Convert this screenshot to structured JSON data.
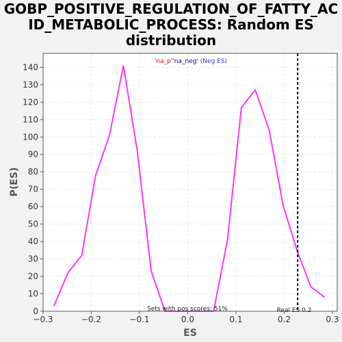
{
  "header": {
    "title_lines": [
      "GOBP_POSITIVE_REGULATION_OF_FATTY_AC",
      "ID_METABOLIC_PROCESS: Random ES",
      "distribution"
    ]
  },
  "chart_data": {
    "type": "line",
    "title": "GOBP_POSITIVE_REGULATION_OF_FATTY_ACID_METABOLIC_PROCESS: Random ES distribution",
    "xlabel": "ES",
    "ylabel": "P(ES)",
    "xlim": [
      -0.3,
      0.31
    ],
    "ylim": [
      0,
      148
    ],
    "xticks": [
      -0.3,
      -0.2,
      -0.1,
      0.0,
      0.1,
      0.2,
      0.3
    ],
    "xtick_labels": [
      "−0.3",
      "−0.2",
      "−0.1",
      "0.0",
      "0.1",
      "0.2",
      "0.3"
    ],
    "yticks": [
      0,
      10,
      20,
      30,
      40,
      50,
      60,
      70,
      80,
      90,
      100,
      110,
      120,
      130,
      140
    ],
    "grid": true,
    "series": [
      {
        "color": "#ff33ff",
        "x": [
          -0.2775,
          -0.2487,
          -0.2199,
          -0.1911,
          -0.1623,
          -0.1335,
          -0.1047,
          -0.0759,
          -0.0471,
          -0.0183,
          0.0105,
          0.0393,
          0.0537,
          0.0825,
          0.1113,
          0.1401,
          0.1689,
          0.1977,
          0.2265,
          0.2553,
          0.2841
        ],
        "y": [
          3,
          22,
          32,
          78,
          101,
          141,
          92,
          23,
          0,
          0,
          0,
          0,
          0,
          41,
          117,
          127,
          104,
          61,
          35,
          14,
          8
        ]
      }
    ],
    "real_es": 0.228,
    "annotations": {
      "legend_na_p": "'na_p'",
      "legend_na_neg": "'na_neg'",
      "legend_neg_es": " (Neg ES)",
      "pos_scores": "Sets with pos scores: 51%",
      "real_es_label": "Real ES 0.2"
    },
    "colors": {
      "line": "#ff33ff",
      "na_p": "#cc0000",
      "na_neg": "#000099",
      "neg_es": "#3333cc",
      "real_es": "#000000"
    }
  }
}
